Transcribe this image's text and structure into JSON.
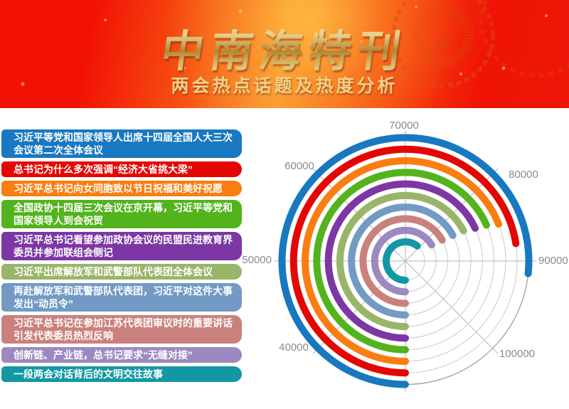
{
  "header": {
    "title": "中南海特刊",
    "subtitle": "两会热点话题及热度分析"
  },
  "chart_data": {
    "type": "radial-bar",
    "title": "两会热点话题及热度分析",
    "categories": [
      "习近平等党和国家领导人出席十四届全国人大三次会议第二次全体会议",
      "总书记为什么多次强调“经济大省挑大梁”",
      "习近平总书记向女同胞致以节日祝福和美好祝愿",
      "全国政协十四届三次会议在京开幕，习近平等党和国家领导人到会祝贺",
      "习近平总书记看望参加政协会议的民盟民进教育界委员并参加联组会侧记",
      "习近平出席解放军和武警部队代表团全体会议",
      "再赴解放军和武警部队代表团，习近平对这件大事发出“动员令”",
      "习近平总书记在参加江苏代表团审议时的重要讲话引发代表委员热烈反响",
      "创新链、产业链，总书记要求“无缝对接”",
      "一段两会对话背后的文明交往故事"
    ],
    "values": [
      91300,
      88000,
      85200,
      84700,
      84400,
      83900,
      83700,
      83400,
      83000,
      78500
    ],
    "colors": [
      "#1878c0",
      "#e30703",
      "#fa7d11",
      "#53b31d",
      "#7c37a4",
      "#99b56a",
      "#739ac4",
      "#ca817d",
      "#9d89c1",
      "#1397a4"
    ],
    "angular_ticks": [
      "40000",
      "50000",
      "60000",
      "70000",
      "80000",
      "90000",
      "100000"
    ],
    "angular_tick_values": [
      40000,
      50000,
      60000,
      70000,
      80000,
      90000,
      100000
    ],
    "axis_value_at_bottom_start": 30000,
    "value_per_45_degrees": 10000,
    "sweep_direction": "clockwise-from-bottom",
    "grid": "per-ring circular gray tracks with 45-degree spokes",
    "legend_position": "left-list"
  }
}
